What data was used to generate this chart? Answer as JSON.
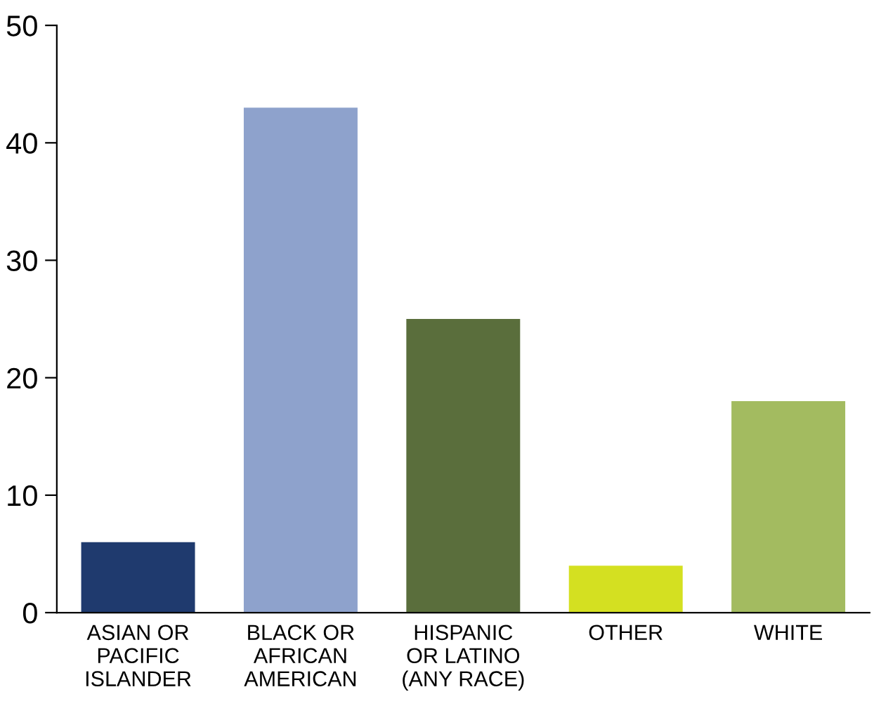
{
  "chart_data": {
    "type": "bar",
    "categories": [
      "ASIAN OR\nPACIFIC\nISLANDER",
      "BLACK OR\nAFRICAN\nAMERICAN",
      "HISPANIC\nOR LATINO\n(ANY RACE)",
      "OTHER",
      "WHITE"
    ],
    "values": [
      6,
      43,
      25,
      4,
      18
    ],
    "colors": [
      "#1f3a6e",
      "#8ea2cc",
      "#5a6e3c",
      "#d4e021",
      "#a3bb60"
    ],
    "ylim": [
      0,
      50
    ],
    "yticks": [
      0,
      10,
      20,
      30,
      40,
      50
    ],
    "grid": false,
    "legend": false
  }
}
